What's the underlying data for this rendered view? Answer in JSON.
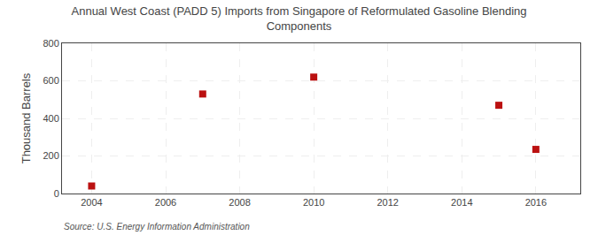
{
  "chart_data": {
    "type": "scatter",
    "title": "Annual West Coast (PADD 5) Imports from Singapore of Reformulated Gasoline Blending\nComponents",
    "ylabel": "Thousand Barrels",
    "annotations": [
      "Source: U.S. Energy Information Administration"
    ],
    "x": [
      2004,
      2007,
      2010,
      2015,
      2016
    ],
    "values": [
      40,
      530,
      620,
      470,
      235
    ],
    "xlim": [
      2003.2,
      2017.2
    ],
    "ylim": [
      0,
      800
    ],
    "xticks": [
      2004,
      2006,
      2008,
      2010,
      2012,
      2014,
      2016
    ],
    "yticks": [
      0,
      200,
      400,
      600,
      800
    ],
    "color": "#bb1111",
    "marker": "square",
    "grid": true
  }
}
